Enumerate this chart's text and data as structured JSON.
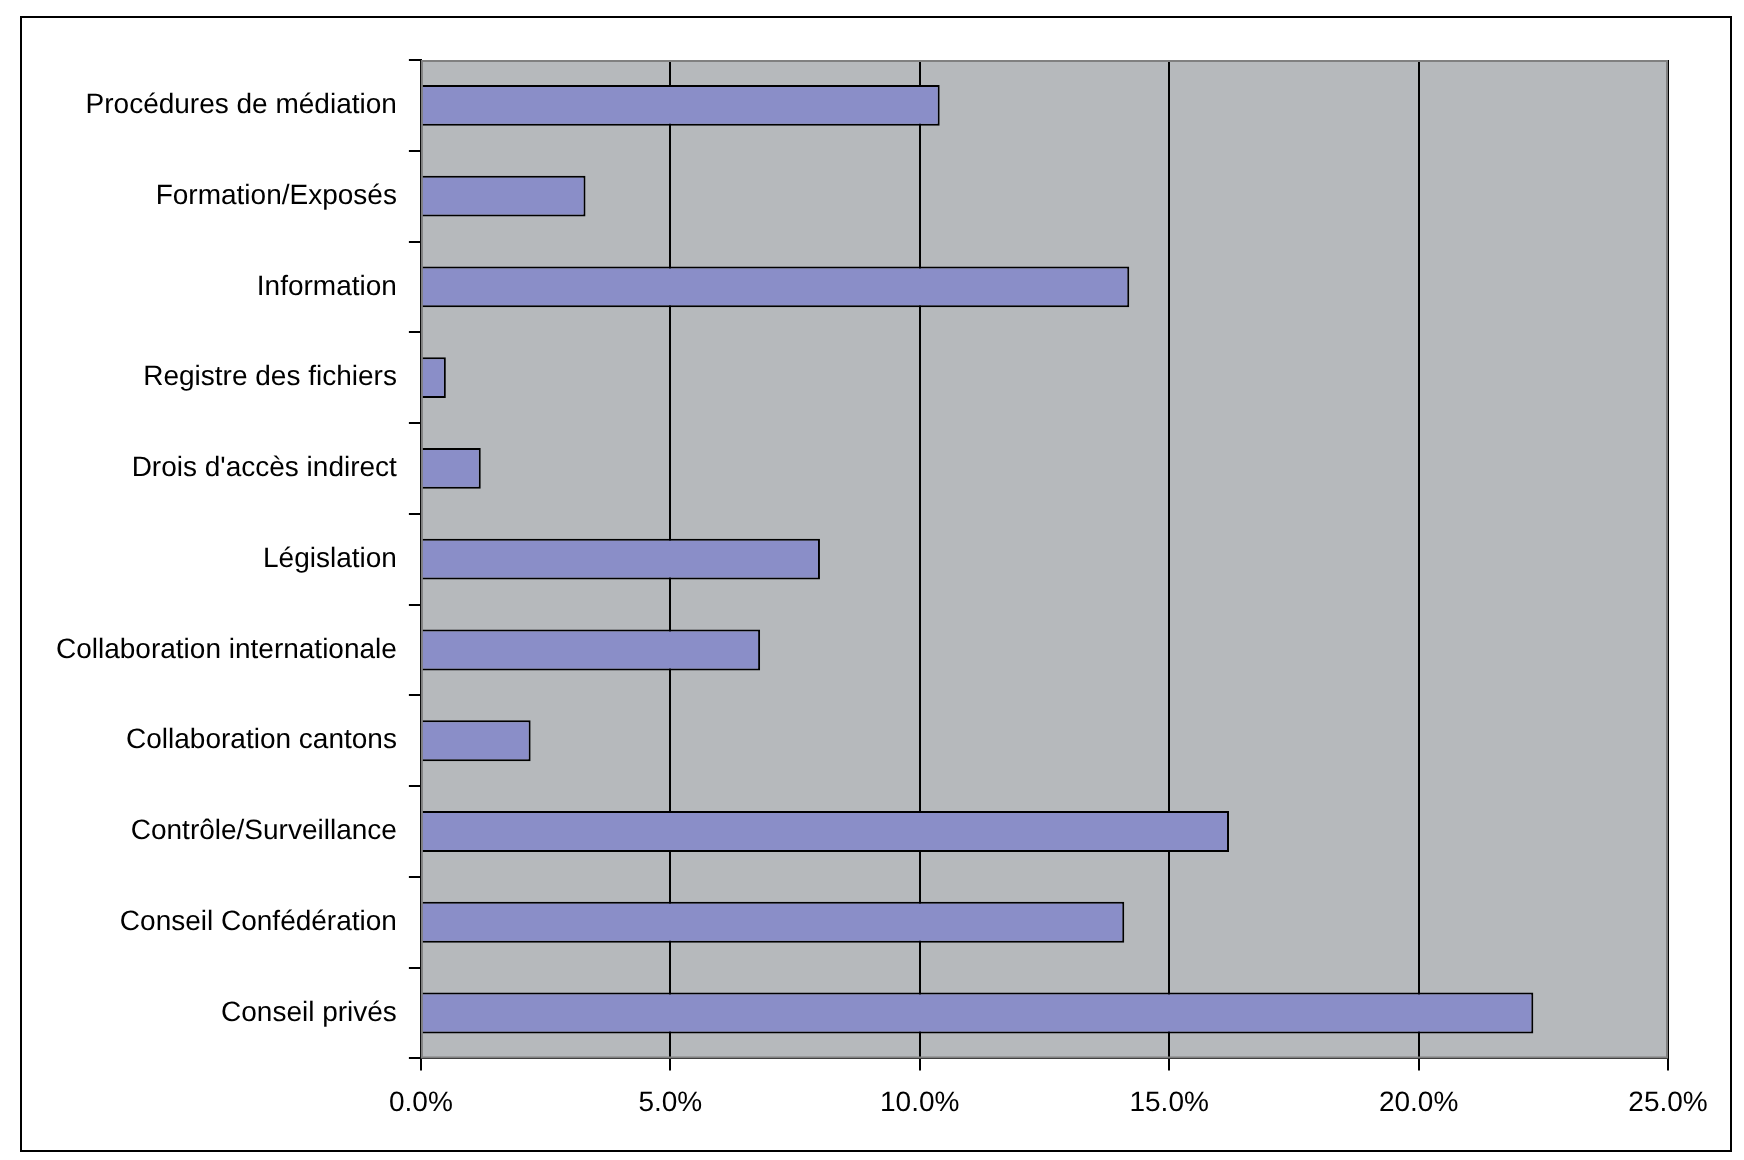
{
  "chart_data": {
    "type": "bar",
    "orientation": "horizontal",
    "categories": [
      "Procédures de médiation",
      "Formation/Exposés",
      "Information",
      "Registre des fichiers",
      "Drois d'accès indirect",
      "Législation",
      "Collaboration internationale",
      "Collaboration cantons",
      "Contrôle/Surveillance",
      "Conseil Confédération",
      "Conseil privés"
    ],
    "values": [
      10.4,
      3.3,
      14.2,
      0.5,
      1.2,
      8.0,
      6.8,
      2.2,
      16.2,
      14.1,
      22.3
    ],
    "color": "#8a8ec8",
    "xlim": [
      0,
      25
    ],
    "xticks": [
      {
        "value": 0,
        "label": "0.0%"
      },
      {
        "value": 5,
        "label": "5.0%"
      },
      {
        "value": 10,
        "label": "10.0%"
      },
      {
        "value": 15,
        "label": "15.0%"
      },
      {
        "value": 20,
        "label": "20.0%"
      },
      {
        "value": 25,
        "label": "25.0%"
      }
    ],
    "grid": "x",
    "legend": false
  }
}
